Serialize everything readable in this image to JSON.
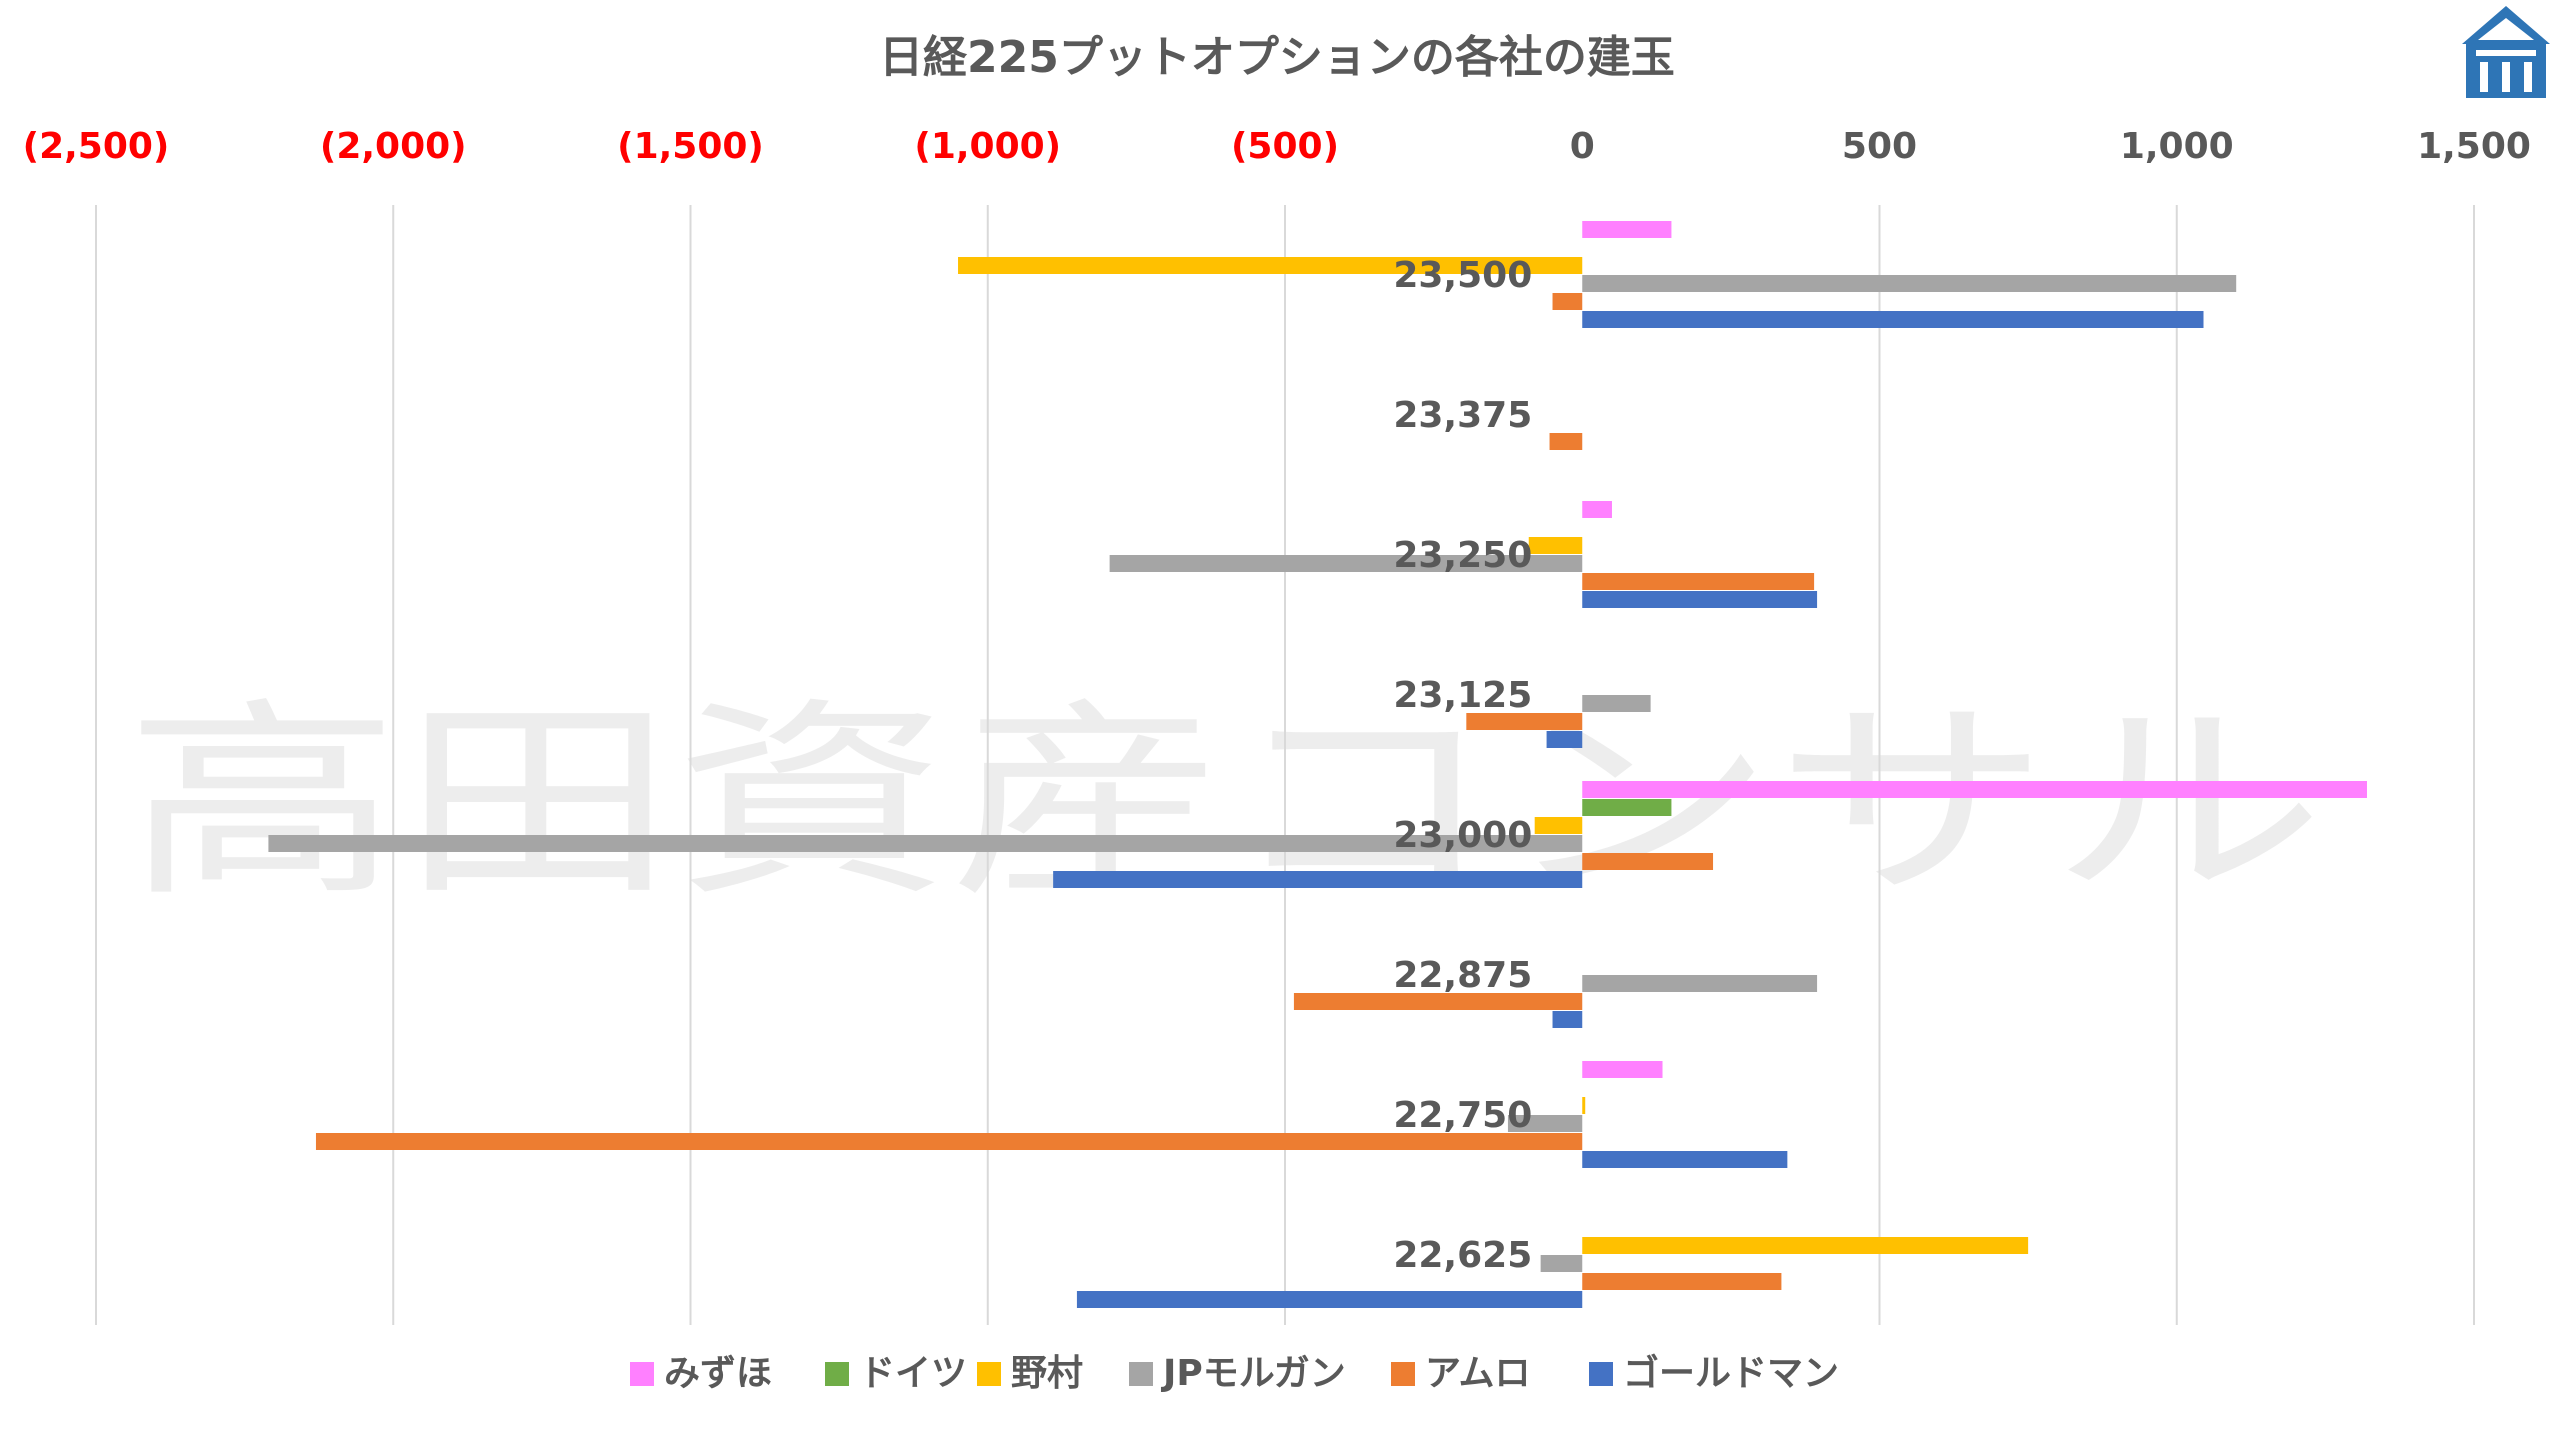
{
  "chart_data": {
    "type": "bar",
    "orientation": "horizontal",
    "title": "日経225プットオプションの各社の建玉",
    "xlim": [
      -2500,
      1500
    ],
    "xticks": [
      -2500,
      -2000,
      -1500,
      -1000,
      -500,
      0,
      500,
      1000,
      1500
    ],
    "xtick_labels": [
      "(2,500)",
      "(2,000)",
      "(1,500)",
      "(1,000)",
      "(500)",
      "0",
      "500",
      "1,000",
      "1,500"
    ],
    "negative_tick_color": "#ff0000",
    "grid": true,
    "legend_position": "bottom",
    "categories": [
      "23,500",
      "23,375",
      "23,250",
      "23,125",
      "23,000",
      "22,875",
      "22,750",
      "22,625"
    ],
    "series": [
      {
        "name": "みずほ",
        "color": "#ff80ff",
        "values": [
          150,
          null,
          50,
          null,
          1320,
          null,
          135,
          null
        ]
      },
      {
        "name": "ドイツ",
        "color": "#70ad47",
        "values": [
          null,
          null,
          null,
          null,
          150,
          null,
          null,
          null
        ]
      },
      {
        "name": "野村",
        "color": "#ffc000",
        "values": [
          -1050,
          null,
          -90,
          null,
          -80,
          null,
          5,
          750
        ]
      },
      {
        "name": "JPモルガン",
        "color": "#a5a5a5",
        "values": [
          1100,
          null,
          -795,
          115,
          -2210,
          395,
          -125,
          -70
        ]
      },
      {
        "name": "アムロ",
        "color": "#ed7d31",
        "values": [
          -50,
          -55,
          390,
          -195,
          220,
          -485,
          -2130,
          335
        ]
      },
      {
        "name": "ゴールドマン",
        "color": "#4472c4",
        "values": [
          1045,
          null,
          395,
          -60,
          -890,
          -50,
          345,
          -850
        ]
      }
    ]
  },
  "watermark": "高田資産コンサル",
  "logo_text": "高田"
}
